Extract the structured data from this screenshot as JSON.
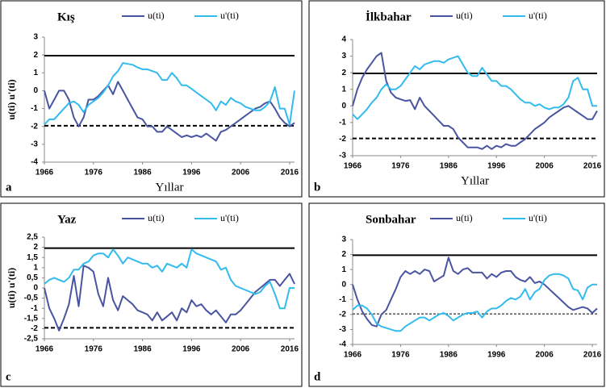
{
  "chart_data": [
    {
      "type": "line",
      "title": "Kış",
      "panel_label": "a",
      "xlabel": "Yıllar",
      "ylabel": "u(ti) u'(ti)",
      "x": [
        1966,
        1967,
        1968,
        1969,
        1970,
        1971,
        1972,
        1973,
        1974,
        1975,
        1976,
        1977,
        1978,
        1979,
        1980,
        1981,
        1982,
        1983,
        1984,
        1985,
        1986,
        1987,
        1988,
        1989,
        1990,
        1991,
        1992,
        1993,
        1994,
        1995,
        1996,
        1997,
        1998,
        1999,
        2000,
        2001,
        2002,
        2003,
        2004,
        2005,
        2006,
        2007,
        2008,
        2009,
        2010,
        2011,
        2012,
        2013,
        2014,
        2015,
        2016,
        2017
      ],
      "series": [
        {
          "name": "u(ti)",
          "color": "#4a55a2",
          "values": [
            0,
            -1,
            -0.5,
            0,
            0,
            -0.5,
            -1.5,
            -2,
            -1.5,
            -0.5,
            -0.5,
            -0.3,
            0,
            0.3,
            -0.2,
            0.5,
            0,
            -0.5,
            -1,
            -1.5,
            -1.6,
            -2,
            -2,
            -2.3,
            -2.3,
            -2,
            -2.2,
            -2.4,
            -2.6,
            -2.5,
            -2.6,
            -2.5,
            -2.6,
            -2.4,
            -2.6,
            -2.8,
            -2.3,
            -2.2,
            -2,
            -1.8,
            -1.6,
            -1.4,
            -1.2,
            -1,
            -0.9,
            -0.7,
            -0.6,
            -1,
            -1.5,
            -1.8,
            -2,
            -1.8
          ]
        },
        {
          "name": "u'(ti)",
          "color": "#33bbee",
          "values": [
            -1.9,
            -1.6,
            -1.6,
            -1.3,
            -1,
            -0.7,
            -0.6,
            -0.8,
            -1.2,
            -0.8,
            -0.6,
            -0.4,
            -0.1,
            0.3,
            0.8,
            1.1,
            1.55,
            1.5,
            1.45,
            1.3,
            1.2,
            1.2,
            1.1,
            1,
            0.6,
            0.6,
            1,
            0.7,
            0.3,
            0.3,
            0.1,
            -0.1,
            -0.3,
            -0.5,
            -0.7,
            -1.1,
            -0.6,
            -0.8,
            -0.4,
            -0.6,
            -0.7,
            -0.9,
            -1,
            -1.1,
            -1.1,
            -0.9,
            -0.6,
            0.2,
            -1,
            -1,
            -1.9,
            0
          ]
        }
      ],
      "hlines": [
        {
          "value": 1.96,
          "style": "solid"
        },
        {
          "value": -1.96,
          "style": "dashed"
        }
      ],
      "xlim": [
        1966,
        2017
      ],
      "xticks": [
        1966,
        1976,
        1986,
        1996,
        2006,
        2016
      ],
      "ylim": [
        -4,
        3
      ],
      "yticks": [
        -4,
        -3,
        -2,
        -1,
        0,
        1,
        2,
        3
      ]
    },
    {
      "type": "line",
      "title": "İlkbahar",
      "panel_label": "b",
      "xlabel": "Yıllar",
      "x": [
        1966,
        1967,
        1968,
        1969,
        1970,
        1971,
        1972,
        1973,
        1974,
        1975,
        1976,
        1977,
        1978,
        1979,
        1980,
        1981,
        1982,
        1983,
        1984,
        1985,
        1986,
        1987,
        1988,
        1989,
        1990,
        1991,
        1992,
        1993,
        1994,
        1995,
        1996,
        1997,
        1998,
        1999,
        2000,
        2001,
        2002,
        2003,
        2004,
        2005,
        2006,
        2007,
        2008,
        2009,
        2010,
        2011,
        2012,
        2013,
        2014,
        2015,
        2016,
        2017
      ],
      "series": [
        {
          "name": "u(ti)",
          "color": "#4a55a2",
          "values": [
            0,
            1,
            1.7,
            2.2,
            2.6,
            3,
            3.2,
            1.5,
            0.8,
            0.5,
            0.4,
            0.3,
            0.35,
            -0.2,
            0.5,
            0,
            -0.3,
            -0.6,
            -0.9,
            -1.2,
            -1.2,
            -1.4,
            -1.9,
            -2.2,
            -2.5,
            -2.5,
            -2.5,
            -2.6,
            -2.4,
            -2.6,
            -2.4,
            -2.5,
            -2.3,
            -2.4,
            -2.4,
            -2.2,
            -2,
            -1.7,
            -1.4,
            -1.2,
            -1,
            -0.7,
            -0.5,
            -0.3,
            -0.1,
            0,
            -0.2,
            -0.4,
            -0.6,
            -0.8,
            -0.8,
            -0.3
          ]
        },
        {
          "name": "u'(ti)",
          "color": "#33bbee",
          "values": [
            -0.5,
            -0.8,
            -0.5,
            -0.2,
            0.2,
            0.5,
            1,
            1.3,
            1,
            1,
            1.2,
            1.6,
            2,
            2.4,
            2.2,
            2.5,
            2.6,
            2.7,
            2.7,
            2.6,
            2.8,
            2.9,
            3,
            2.5,
            2,
            1.8,
            1.8,
            2.3,
            1.9,
            1.5,
            1.5,
            1.2,
            1.2,
            1,
            0.7,
            0.4,
            0.2,
            0.2,
            0,
            0.1,
            -0.1,
            -0.2,
            -0.1,
            -0.1,
            0.1,
            0.5,
            1.5,
            1.7,
            1,
            1,
            0,
            0
          ]
        }
      ],
      "hlines": [
        {
          "value": 1.96,
          "style": "solid"
        },
        {
          "value": -1.96,
          "style": "dashed"
        }
      ],
      "xlim": [
        1966,
        2017
      ],
      "xticks": [
        1966,
        1976,
        1986,
        1996,
        2006,
        2016
      ],
      "ylim": [
        -3,
        4
      ],
      "yticks": [
        -3,
        -2,
        -1,
        0,
        1,
        2,
        3,
        4
      ]
    },
    {
      "type": "line",
      "title": "Yaz",
      "panel_label": "c",
      "ylabel": "u(ti) u'(ti)",
      "x": [
        1966,
        1967,
        1968,
        1969,
        1970,
        1971,
        1972,
        1973,
        1974,
        1975,
        1976,
        1977,
        1978,
        1979,
        1980,
        1981,
        1982,
        1983,
        1984,
        1985,
        1986,
        1987,
        1988,
        1989,
        1990,
        1991,
        1992,
        1993,
        1994,
        1995,
        1996,
        1997,
        1998,
        1999,
        2000,
        2001,
        2002,
        2003,
        2004,
        2005,
        2006,
        2007,
        2008,
        2009,
        2010,
        2011,
        2012,
        2013,
        2014,
        2015,
        2016,
        2017
      ],
      "series": [
        {
          "name": "u(ti)",
          "color": "#4a55a2",
          "values": [
            0,
            -1,
            -1.5,
            -2.1,
            -1.5,
            -0.8,
            0.6,
            -0.9,
            1.1,
            1,
            0.8,
            -0.3,
            -0.9,
            0.5,
            -0.6,
            -1.1,
            -0.4,
            -0.6,
            -0.8,
            -1.1,
            -1.2,
            -1.3,
            -1.6,
            -1.2,
            -1.6,
            -1.4,
            -1.2,
            -1.6,
            -1,
            -1.2,
            -0.6,
            -0.9,
            -0.8,
            -1.1,
            -1.3,
            -1.1,
            -1.4,
            -1.7,
            -1.3,
            -1.3,
            -1.1,
            -0.8,
            -0.5,
            -0.2,
            0,
            0.2,
            0.4,
            0.4,
            0.1,
            0.4,
            0.7,
            0.2
          ]
        },
        {
          "name": "u'(ti)",
          "color": "#33bbee",
          "values": [
            0.2,
            0.4,
            0.5,
            0.4,
            0.3,
            0.5,
            0.9,
            0.9,
            1.2,
            1.3,
            1.6,
            1.7,
            1.7,
            1.5,
            1.9,
            1.6,
            1.2,
            1.5,
            1.4,
            1.3,
            1.2,
            1.2,
            1,
            1.1,
            0.8,
            1.2,
            1.1,
            1,
            1.2,
            1,
            1.9,
            1.7,
            1.6,
            1.5,
            1.4,
            1.3,
            0.9,
            1,
            0.4,
            0.1,
            0,
            -0.1,
            -0.2,
            -0.3,
            -0.2,
            0.1,
            0.3,
            -0.3,
            -1,
            -1,
            0,
            0
          ]
        }
      ],
      "hlines": [
        {
          "value": 1.96,
          "style": "solid"
        },
        {
          "value": -1.96,
          "style": "dashed"
        }
      ],
      "xlim": [
        1966,
        2017
      ],
      "xticks": [
        1966,
        1976,
        1986,
        1996,
        2006,
        2016
      ],
      "ylim": [
        -2.5,
        2.5
      ],
      "yticks": [
        {
          "value": -2.5,
          "label": "-2,5"
        },
        -2,
        {
          "value": -1.5,
          "label": "-1,5"
        },
        -1,
        {
          "value": -0.5,
          "label": "-0,5"
        },
        0,
        {
          "value": 0.5,
          "label": "0,5"
        },
        1,
        {
          "value": 1.5,
          "label": "1,5"
        },
        2,
        {
          "value": 2.5,
          "label": "2,5"
        }
      ]
    },
    {
      "type": "line",
      "title": "Sonbahar",
      "panel_label": "d",
      "x": [
        1966,
        1967,
        1968,
        1969,
        1970,
        1971,
        1972,
        1973,
        1974,
        1975,
        1976,
        1977,
        1978,
        1979,
        1980,
        1981,
        1982,
        1983,
        1984,
        1985,
        1986,
        1987,
        1988,
        1989,
        1990,
        1991,
        1992,
        1993,
        1994,
        1995,
        1996,
        1997,
        1998,
        1999,
        2000,
        2001,
        2002,
        2003,
        2004,
        2005,
        2006,
        2007,
        2008,
        2009,
        2010,
        2011,
        2012,
        2013,
        2014,
        2015,
        2016,
        2017
      ],
      "series": [
        {
          "name": "u(ti)",
          "color": "#4a55a2",
          "values": [
            0,
            -1,
            -1.8,
            -2.3,
            -2.7,
            -2.8,
            -2,
            -1.7,
            -1,
            -0.3,
            0.5,
            0.9,
            0.7,
            0.9,
            0.7,
            1,
            0.9,
            0.2,
            0.4,
            0.6,
            1.8,
            0.9,
            0.7,
            1,
            1.1,
            0.8,
            0.8,
            0.8,
            0.4,
            0.7,
            0.5,
            0.8,
            0.9,
            0.9,
            0.5,
            0.3,
            0.2,
            0.5,
            0.1,
            0.2,
            0,
            -0.3,
            -0.6,
            -0.9,
            -1.2,
            -1.5,
            -1.7,
            -1.6,
            -1.5,
            -1.6,
            -1.9,
            -1.6
          ]
        },
        {
          "name": "u'(ti)",
          "color": "#33bbee",
          "values": [
            -1.7,
            -1.4,
            -1.4,
            -1.6,
            -2,
            -2.6,
            -2.8,
            -2.9,
            -3,
            -3.1,
            -3.1,
            -2.8,
            -2.6,
            -2.4,
            -2.2,
            -2.2,
            -2.4,
            -2.2,
            -2,
            -1.9,
            -2.1,
            -2.4,
            -2.2,
            -2,
            -1.9,
            -1.9,
            -1.8,
            -2.2,
            -1.8,
            -1.6,
            -1.6,
            -1.4,
            -1.1,
            -0.9,
            -1,
            -0.8,
            -0.3,
            -1,
            -0.5,
            -0.3,
            0.3,
            0.6,
            0.7,
            0.7,
            0.6,
            0.4,
            -0.3,
            -0.4,
            -1,
            -0.2,
            0,
            0
          ]
        }
      ],
      "hlines": [
        {
          "value": 1.96,
          "style": "solid"
        },
        {
          "value": -1.96,
          "style": "thin-dashed"
        }
      ],
      "xlim": [
        1966,
        2017
      ],
      "xticks": [
        1966,
        1976,
        1986,
        1996,
        2006,
        2016
      ],
      "ylim": [
        -4,
        3
      ],
      "yticks": [
        -4,
        -3,
        -2,
        -1,
        0,
        1,
        2,
        3
      ]
    }
  ]
}
